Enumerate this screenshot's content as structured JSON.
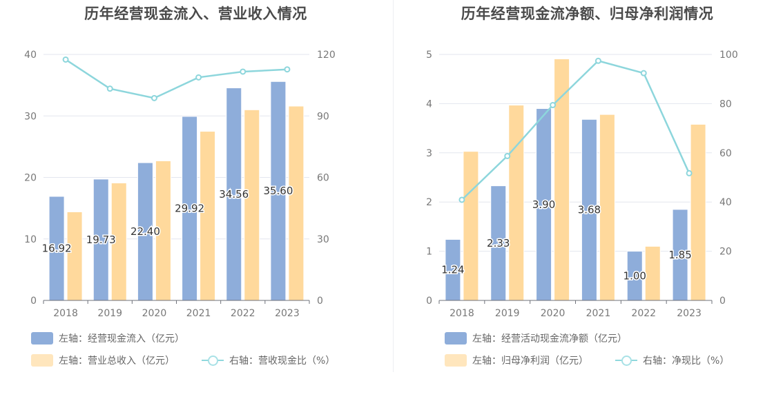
{
  "colors": {
    "bar_primary": "#8eadda",
    "bar_secondary": "#ffd99c",
    "line": "#8dd6dc",
    "grid": "#e3e6ee",
    "axis_text": "#777777"
  },
  "chart_data": [
    {
      "type": "bar",
      "title": "历年经营现金流入、营业收入情况",
      "categories": [
        "2018",
        "2019",
        "2020",
        "2021",
        "2022",
        "2023"
      ],
      "left_axis": {
        "ylim": [
          0,
          40
        ],
        "ticks": [
          "0",
          "10",
          "20",
          "30",
          "40"
        ]
      },
      "right_axis": {
        "ylim": [
          0,
          120
        ],
        "ticks": [
          "0",
          "30",
          "60",
          "90",
          "120"
        ]
      },
      "series": [
        {
          "name": "左轴：经营现金流入（亿元）",
          "axis": "left",
          "kind": "bar",
          "values": [
            16.92,
            19.73,
            22.4,
            29.92,
            34.56,
            35.6
          ],
          "labels": [
            "16.92",
            "19.73",
            "22.40",
            "29.92",
            "34.56",
            "35.60"
          ]
        },
        {
          "name": "左轴：营业总收入（亿元）",
          "axis": "left",
          "kind": "bar",
          "values": [
            14.4,
            19.1,
            22.7,
            27.5,
            31.0,
            31.6
          ]
        },
        {
          "name": "右轴：营收现金比（%）",
          "axis": "right",
          "kind": "line",
          "values": [
            117.5,
            103.3,
            98.7,
            108.8,
            111.6,
            112.7
          ]
        }
      ]
    },
    {
      "type": "bar",
      "title": "历年经营现金流净额、归母净利润情况",
      "categories": [
        "2018",
        "2019",
        "2020",
        "2021",
        "2022",
        "2023"
      ],
      "left_axis": {
        "ylim": [
          0,
          5
        ],
        "ticks": [
          "0",
          "1",
          "2",
          "3",
          "4",
          "5"
        ]
      },
      "right_axis": {
        "ylim": [
          0,
          100
        ],
        "ticks": [
          "0",
          "20",
          "40",
          "60",
          "80",
          "100"
        ]
      },
      "series": [
        {
          "name": "左轴：经营活动现金流净额（亿元）",
          "axis": "left",
          "kind": "bar",
          "values": [
            1.24,
            2.33,
            3.9,
            3.68,
            1.0,
            1.85
          ],
          "labels": [
            "1.24",
            "2.33",
            "3.90",
            "3.68",
            "1.00",
            "1.85"
          ]
        },
        {
          "name": "左轴：归母净利润（亿元）",
          "axis": "left",
          "kind": "bar",
          "values": [
            3.03,
            3.97,
            4.91,
            3.78,
            1.1,
            3.58
          ]
        },
        {
          "name": "右轴：净现比（%）",
          "axis": "right",
          "kind": "line",
          "values": [
            40.9,
            58.7,
            79.4,
            97.4,
            92.4,
            51.7
          ]
        }
      ]
    }
  ]
}
